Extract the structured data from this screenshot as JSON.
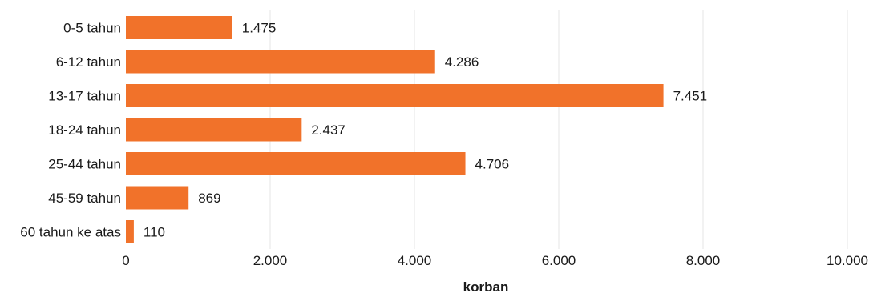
{
  "chart_data": {
    "type": "bar",
    "orientation": "horizontal",
    "categories": [
      "0-5 tahun",
      "6-12 tahun",
      "13-17 tahun",
      "18-24 tahun",
      "25-44 tahun",
      "45-59 tahun",
      "60 tahun ke atas"
    ],
    "values": [
      1475,
      4286,
      7451,
      2437,
      4706,
      869,
      110
    ],
    "value_labels": [
      "1.475",
      "4.286",
      "7.451",
      "2.437",
      "4.706",
      "869",
      "110"
    ],
    "xlabel": "korban",
    "ylabel": "",
    "title": "",
    "xlim": [
      0,
      10000
    ],
    "x_ticks": [
      0,
      2000,
      4000,
      6000,
      8000,
      10000
    ],
    "x_tick_labels": [
      "0",
      "2.000",
      "4.000",
      "6.000",
      "8.000",
      "10.000"
    ],
    "grid": "vertical",
    "legend": "none",
    "bar_color": "#f1722a"
  }
}
